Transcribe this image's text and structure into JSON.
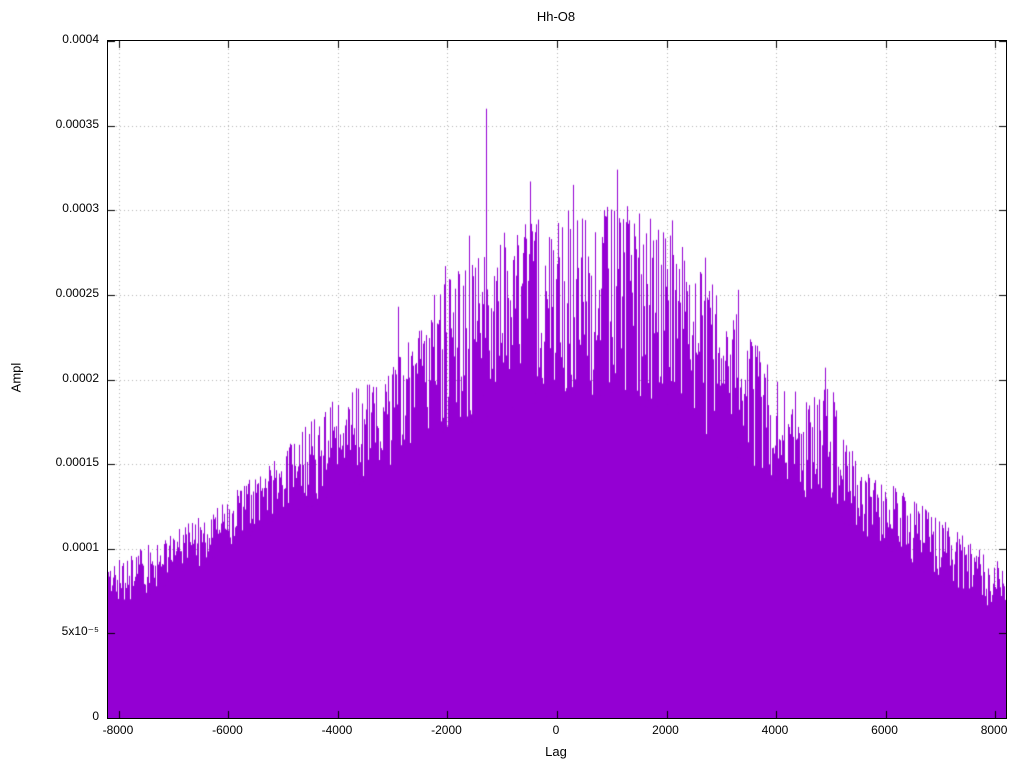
{
  "chart_data": {
    "type": "impulse",
    "title": "Hh-O8",
    "xlabel": "Lag",
    "ylabel": "Ampl",
    "xlim": [
      -8200,
      8200
    ],
    "ylim": [
      0,
      0.0004
    ],
    "grid": true,
    "legend": false,
    "color": "#9400d3",
    "grid_color": "#b3b3b3",
    "x_ticks": [
      {
        "value": -8000,
        "label": "-8000"
      },
      {
        "value": -6000,
        "label": "-6000"
      },
      {
        "value": -4000,
        "label": "-4000"
      },
      {
        "value": -2000,
        "label": "-2000"
      },
      {
        "value": 0,
        "label": "0"
      },
      {
        "value": 2000,
        "label": "2000"
      },
      {
        "value": 4000,
        "label": "4000"
      },
      {
        "value": 6000,
        "label": "6000"
      },
      {
        "value": 8000,
        "label": "8000"
      }
    ],
    "y_ticks": [
      {
        "value": 0,
        "label": "0"
      },
      {
        "value": 5e-05,
        "label": "5x10⁻⁵"
      },
      {
        "value": 0.0001,
        "label": "0.0001"
      },
      {
        "value": 0.00015,
        "label": "0.00015"
      },
      {
        "value": 0.0002,
        "label": "0.0002"
      },
      {
        "value": 0.00025,
        "label": "0.00025"
      },
      {
        "value": 0.0003,
        "label": "0.0003"
      },
      {
        "value": 0.00035,
        "label": "0.00035"
      }
    ],
    "y_max_tick": {
      "value": 0.0004,
      "label": "0.0004"
    },
    "solid_envelope": [
      [
        -8200,
        3.5e-05
      ],
      [
        -7000,
        4.2e-05
      ],
      [
        -6000,
        5e-05
      ],
      [
        -5000,
        6e-05
      ],
      [
        -4000,
        7e-05
      ],
      [
        -3000,
        8e-05
      ],
      [
        -2000,
        9e-05
      ],
      [
        -1000,
        9.5e-05
      ],
      [
        0,
        0.0001
      ],
      [
        1000,
        0.0001
      ],
      [
        2000,
        0.0001
      ],
      [
        3000,
        9e-05
      ],
      [
        4000,
        8e-05
      ],
      [
        5000,
        7e-05
      ],
      [
        6000,
        5.5e-05
      ],
      [
        7000,
        4.5e-05
      ],
      [
        8200,
        3.5e-05
      ]
    ],
    "mid_envelope": [
      [
        -8200,
        6e-05
      ],
      [
        -7000,
        8e-05
      ],
      [
        -6000,
        0.0001
      ],
      [
        -5000,
        0.00012
      ],
      [
        -4000,
        0.00013
      ],
      [
        -3000,
        0.00015
      ],
      [
        -2000,
        0.00017
      ],
      [
        -1000,
        0.00018
      ],
      [
        0,
        0.00019
      ],
      [
        1000,
        0.00019
      ],
      [
        2000,
        0.00018
      ],
      [
        3000,
        0.00016
      ],
      [
        4000,
        0.00014
      ],
      [
        5000,
        0.00012
      ],
      [
        6000,
        0.0001
      ],
      [
        7000,
        8e-05
      ],
      [
        8200,
        6e-05
      ]
    ],
    "peak_envelope": [
      [
        -8200,
        9e-05
      ],
      [
        -7000,
        0.00011
      ],
      [
        -6000,
        0.00013
      ],
      [
        -5000,
        0.00016
      ],
      [
        -4000,
        0.00019
      ],
      [
        -3000,
        0.00021
      ],
      [
        -2000,
        0.00026
      ],
      [
        -1000,
        0.00029
      ],
      [
        0,
        0.0003
      ],
      [
        1000,
        0.00031
      ],
      [
        1500,
        0.0003
      ],
      [
        2000,
        0.00029
      ],
      [
        2500,
        0.00027
      ],
      [
        3000,
        0.00025
      ],
      [
        3500,
        0.00023
      ],
      [
        4000,
        0.0002
      ],
      [
        4500,
        0.00019
      ],
      [
        5000,
        0.0002
      ],
      [
        5500,
        0.00015
      ],
      [
        6000,
        0.00014
      ],
      [
        6500,
        0.00013
      ],
      [
        7000,
        0.00012
      ],
      [
        8200,
        9e-05
      ]
    ],
    "notable_spikes": [
      [
        -1300,
        0.00036
      ],
      [
        -1600,
        0.000285
      ],
      [
        -500,
        0.000317
      ],
      [
        -2050,
        0.000267
      ],
      [
        -2250,
        0.00025
      ],
      [
        -2900,
        0.000243
      ],
      [
        -4600,
        0.000172
      ],
      [
        300,
        0.000315
      ],
      [
        700,
        0.000287
      ],
      [
        1100,
        0.000324
      ],
      [
        1700,
        0.000295
      ],
      [
        2100,
        0.000294
      ],
      [
        2700,
        0.000272
      ],
      [
        3300,
        0.000253
      ],
      [
        4900,
        0.000207
      ]
    ]
  }
}
